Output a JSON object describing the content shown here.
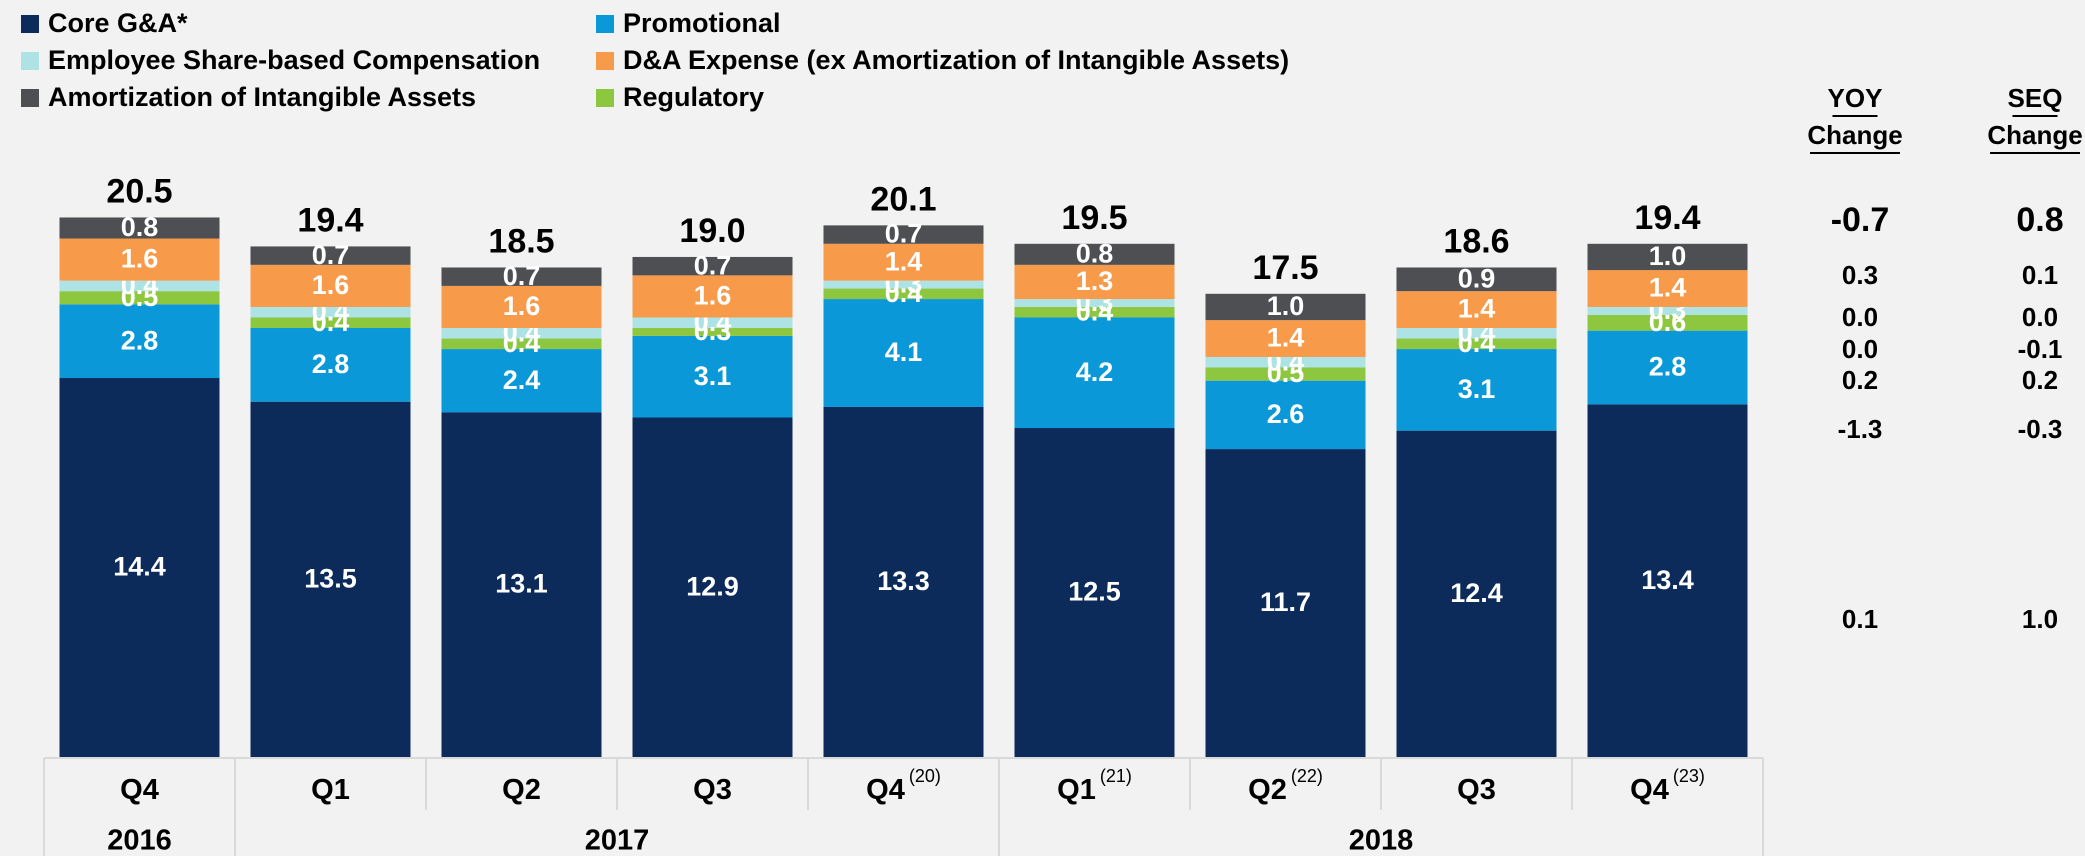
{
  "chart_data": {
    "type": "stacked-bar",
    "categories": [
      "Q4",
      "Q1",
      "Q2",
      "Q3",
      "Q4",
      "Q1",
      "Q2",
      "Q3",
      "Q4"
    ],
    "category_notes": [
      null,
      null,
      null,
      null,
      "(20)",
      "(21)",
      "(22)",
      null,
      "(23)"
    ],
    "years": [
      "2016",
      "2017",
      "2018"
    ],
    "year_spans": [
      1,
      4,
      4
    ],
    "ylim": [
      0,
      22
    ],
    "series": [
      {
        "name": "Core G&A*",
        "color": "#0d2b5a",
        "values": [
          14.4,
          13.5,
          13.1,
          12.9,
          13.3,
          12.5,
          11.7,
          12.4,
          13.4
        ]
      },
      {
        "name": "Promotional",
        "color": "#0a98d8",
        "values": [
          2.8,
          2.8,
          2.4,
          3.1,
          4.1,
          4.2,
          2.6,
          3.1,
          2.8
        ]
      },
      {
        "name": "Regulatory",
        "color": "#8dc63f",
        "values": [
          0.5,
          0.4,
          0.4,
          0.3,
          0.4,
          0.4,
          0.5,
          0.4,
          0.6
        ]
      },
      {
        "name": "Employee Share-based Compensation",
        "color": "#aee3e6",
        "values": [
          0.4,
          0.4,
          0.4,
          0.4,
          0.3,
          0.3,
          0.4,
          0.4,
          0.3
        ]
      },
      {
        "name": "D&A Expense (ex Amortization of Intangible Assets)",
        "color": "#f79a4a",
        "values": [
          1.6,
          1.6,
          1.6,
          1.6,
          1.4,
          1.3,
          1.4,
          1.4,
          1.4
        ]
      },
      {
        "name": "Amortization of Intangible Assets",
        "color": "#4d4f53",
        "values": [
          0.8,
          0.7,
          0.7,
          0.7,
          0.7,
          0.8,
          1.0,
          0.9,
          1.0
        ],
        "value_labels": [
          "0.8",
          "0.7",
          "0.7",
          "0.7",
          "0.7",
          "0.8",
          "1.0",
          "0.9",
          "1.0"
        ]
      }
    ],
    "totals": [
      20.5,
      19.4,
      18.5,
      19.0,
      20.1,
      19.5,
      17.5,
      18.6,
      19.4
    ],
    "total_labels": [
      "20.5",
      "19.4",
      "18.5",
      "19.0",
      "20.1",
      "19.5",
      "17.5",
      "18.6",
      "19.4"
    ],
    "changes": {
      "yoy_header": [
        "YOY",
        "Change"
      ],
      "seq_header": [
        "SEQ",
        "Change"
      ],
      "total": [
        "-0.7",
        "0.8"
      ],
      "rows": [
        [
          "0.1",
          "1.0"
        ],
        [
          "-1.3",
          "-0.3"
        ],
        [
          "0.2",
          "0.2"
        ],
        [
          "0.0",
          "-0.1"
        ],
        [
          "0.0",
          "0.0"
        ],
        [
          "0.3",
          "0.1"
        ]
      ]
    }
  }
}
